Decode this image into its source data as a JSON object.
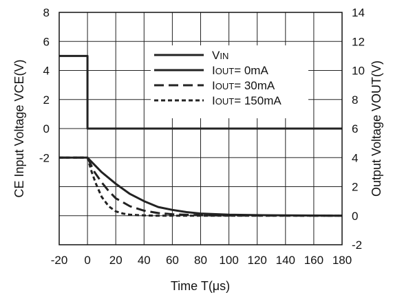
{
  "chart_data": {
    "type": "line",
    "xlabel": "Time T(μs)",
    "ylabel_left": "CE Input Voltage VCE(V)",
    "ylabel_right": "Output Voltage VOUT(V)",
    "x_ticks": [
      -20,
      0,
      20,
      40,
      60,
      80,
      100,
      120,
      140,
      160,
      180
    ],
    "xlim": [
      -20,
      180
    ],
    "y_left_ticks": [
      8,
      6,
      4,
      2,
      0,
      -2
    ],
    "ylim_left": [
      -8,
      8
    ],
    "y_right_ticks": [
      14,
      12,
      10,
      8,
      6,
      4,
      2,
      0,
      -2
    ],
    "ylim_right": [
      -2,
      14
    ],
    "grid": true,
    "legend_position": "top-right",
    "series": [
      {
        "name": "VIN",
        "name_main": "V",
        "name_sub": "IN",
        "axis": "left",
        "style": "solid",
        "x": [
          -20,
          0,
          0,
          180
        ],
        "y": [
          5,
          5,
          0,
          0
        ]
      },
      {
        "name": "IOUT= 0mA",
        "name_main": "I",
        "name_sub": "OUT",
        "name_rest": "= 0mA",
        "axis": "right",
        "style": "solid",
        "x": [
          -20,
          0,
          10,
          20,
          30,
          40,
          50,
          60,
          70,
          80,
          100,
          120,
          140,
          160,
          180
        ],
        "y": [
          4,
          4,
          3.0,
          2.2,
          1.5,
          1.0,
          0.6,
          0.4,
          0.25,
          0.15,
          0.07,
          0.04,
          0.02,
          0.01,
          0
        ]
      },
      {
        "name": "IOUT= 30mA",
        "name_main": "I",
        "name_sub": "OUT",
        "name_rest": "= 30mA",
        "axis": "right",
        "style": "dashed",
        "x": [
          -20,
          0,
          5,
          10,
          15,
          20,
          30,
          40,
          50,
          60,
          80,
          100,
          180
        ],
        "y": [
          4,
          4,
          3.0,
          2.3,
          1.7,
          1.2,
          0.65,
          0.35,
          0.18,
          0.1,
          0.03,
          0.01,
          0
        ]
      },
      {
        "name": "IOUT= 150mA",
        "name_main": "I",
        "name_sub": "OUT",
        "name_rest": "= 150mA",
        "axis": "right",
        "style": "dotted-dash",
        "x": [
          -20,
          0,
          3,
          6,
          10,
          15,
          20,
          25,
          30,
          40,
          50,
          180
        ],
        "y": [
          4,
          4,
          3.0,
          2.2,
          1.3,
          0.65,
          0.3,
          0.15,
          0.07,
          0.02,
          0,
          0
        ]
      }
    ]
  }
}
